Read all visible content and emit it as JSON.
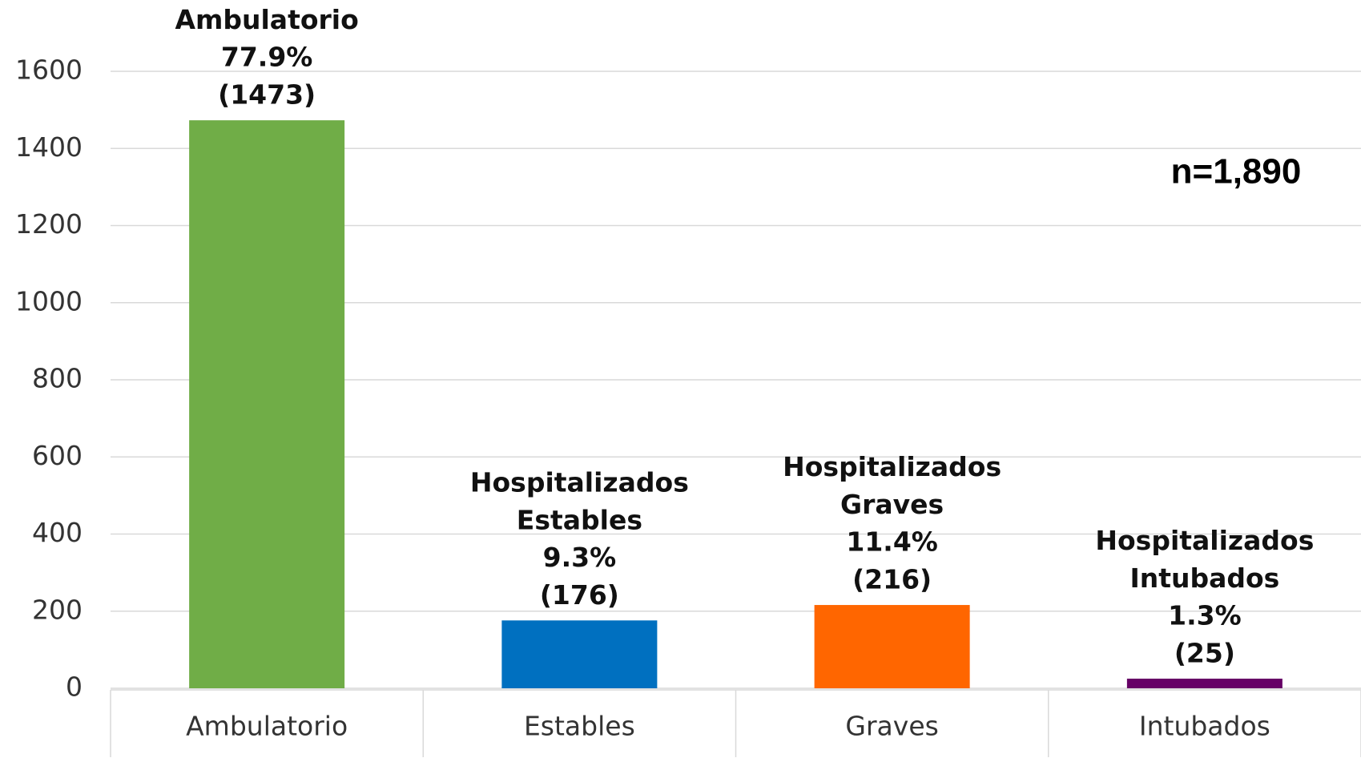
{
  "chart_data": {
    "type": "bar",
    "categories": [
      "Ambulatorio",
      "Estables",
      "Graves",
      "Intubados"
    ],
    "values": [
      1473,
      176,
      216,
      25
    ],
    "colors": [
      "#70ad47",
      "#0070c0",
      "#ff6600",
      "#660066"
    ],
    "bar_labels": [
      "Ambulatorio",
      "Hospitalizados Estables",
      "Hospitalizados Graves",
      "Hospitalizados Intubados"
    ],
    "percent_labels": [
      "77.9%",
      "9.3%",
      "11.4%",
      "1.3%"
    ],
    "value_labels": [
      "(1473)",
      "(176)",
      "(216)",
      "(25)"
    ],
    "annotation": "n=1,890",
    "ylim": [
      0,
      1600
    ],
    "yticks": [
      0,
      200,
      400,
      600,
      800,
      1000,
      1200,
      1400,
      1600
    ],
    "grid": true
  }
}
